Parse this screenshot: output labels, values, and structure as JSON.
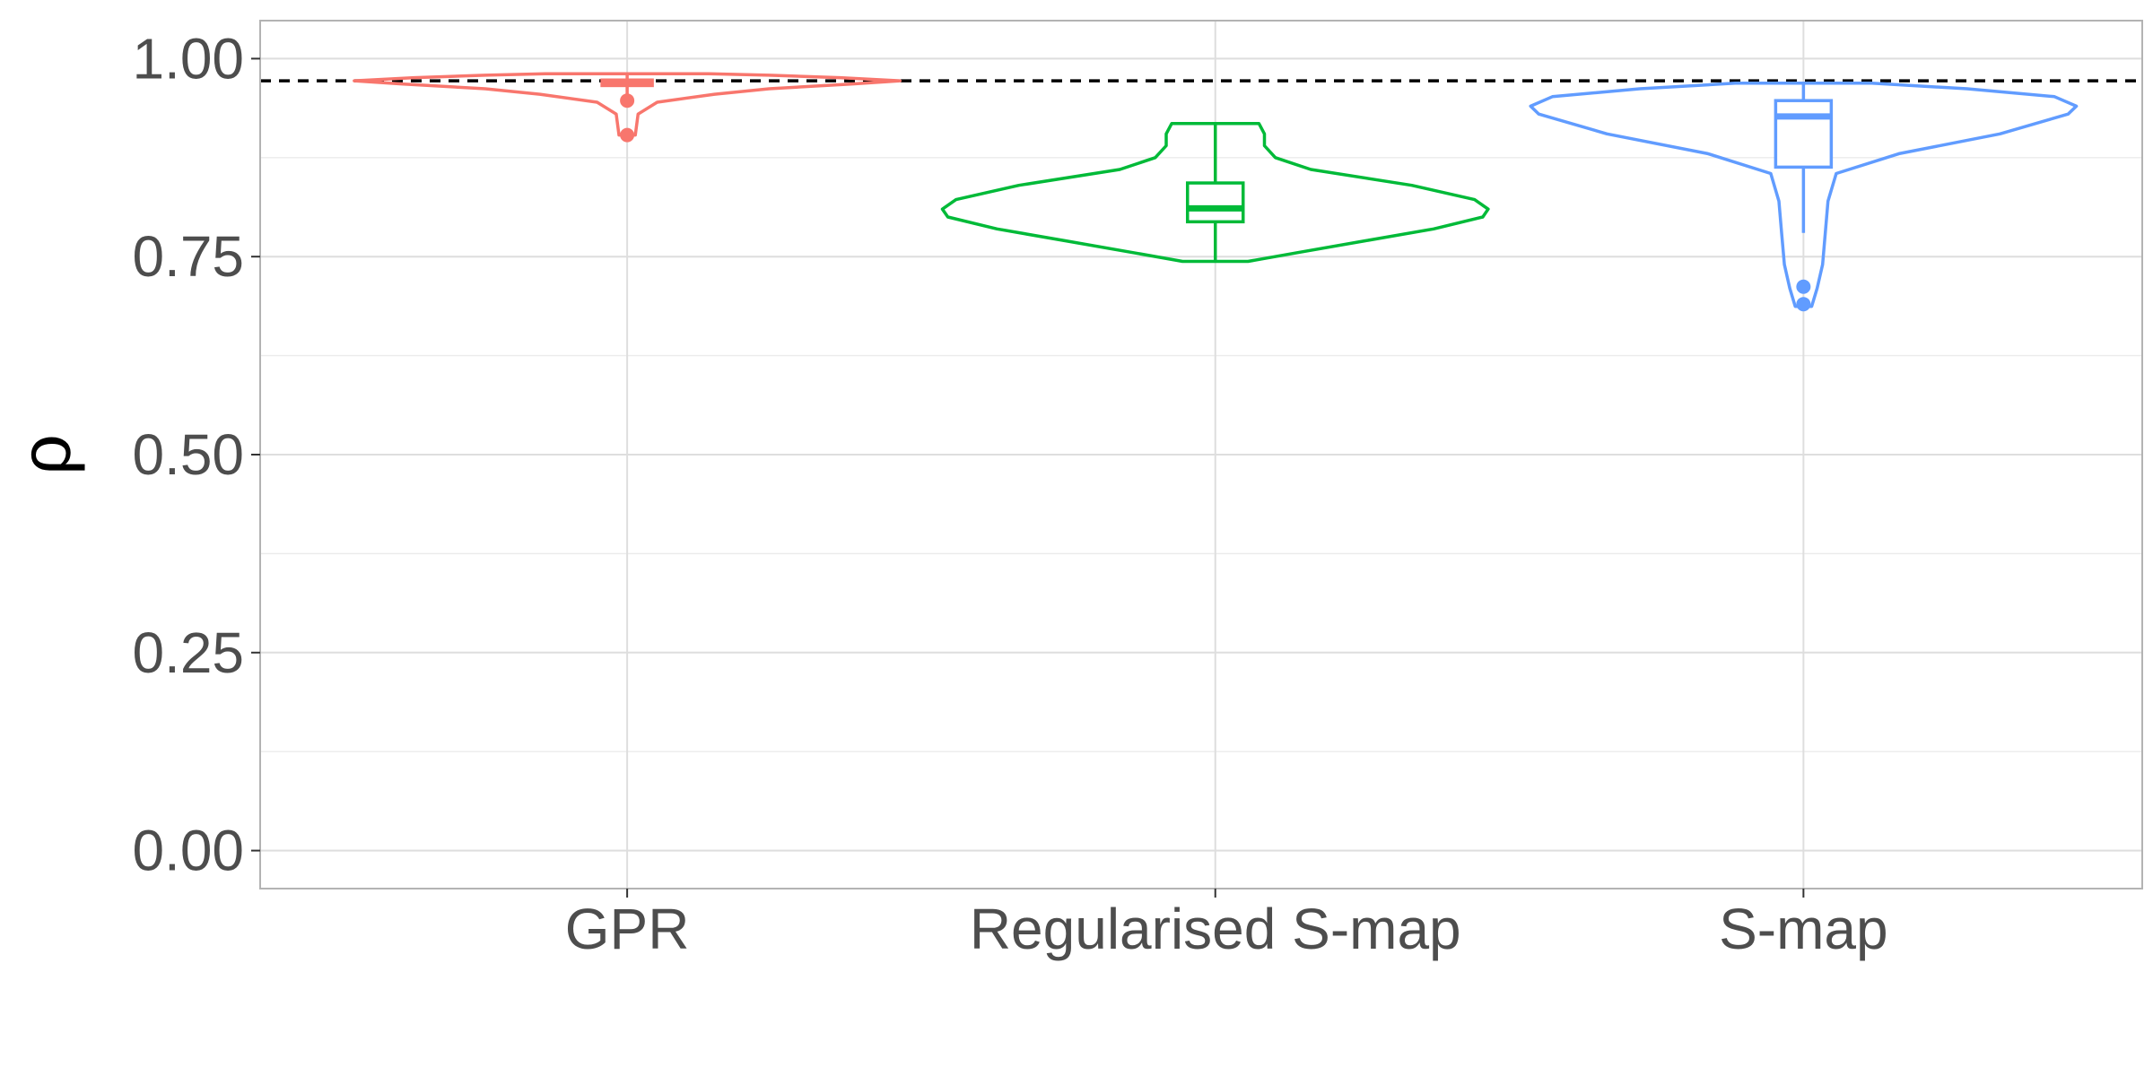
{
  "chart_data": {
    "type": "violin",
    "title": "",
    "xlabel": "",
    "ylabel": "ρ",
    "ylim": [
      -0.048,
      1.048
    ],
    "yticks": [
      0.0,
      0.25,
      0.5,
      0.75,
      1.0
    ],
    "ytick_labels": [
      "0.00",
      "0.25",
      "0.50",
      "0.75",
      "1.00"
    ],
    "minor_yticks": [
      0.125,
      0.375,
      0.625,
      0.875
    ],
    "categories": [
      "GPR",
      "Regularised S-map",
      "S-map"
    ],
    "grid": true,
    "legend": "none",
    "reference_line": {
      "y": 0.972,
      "style": "dashed",
      "color": "#000000"
    },
    "series": [
      {
        "category": "GPR",
        "color": "#F8766D",
        "violin": [
          [
            0.9035,
            0.03
          ],
          [
            0.93,
            0.04
          ],
          [
            0.945,
            0.11
          ],
          [
            0.955,
            0.32
          ],
          [
            0.962,
            0.52
          ],
          [
            0.968,
            0.82
          ],
          [
            0.972,
            1.0
          ],
          [
            0.976,
            0.78
          ],
          [
            0.979,
            0.52
          ],
          [
            0.981,
            0.3
          ]
        ],
        "box": {
          "q1": 0.966,
          "median": 0.9695,
          "q3": 0.973,
          "whisker_low": 0.955,
          "whisker_high": 0.979
        },
        "outliers": [
          0.947,
          0.9035
        ]
      },
      {
        "category": "Regularised S-map",
        "color": "#00BA38",
        "violin": [
          [
            0.744,
            0.12
          ],
          [
            0.755,
            0.3
          ],
          [
            0.77,
            0.55
          ],
          [
            0.785,
            0.8
          ],
          [
            0.8,
            0.98
          ],
          [
            0.81,
            1.0
          ],
          [
            0.822,
            0.95
          ],
          [
            0.84,
            0.72
          ],
          [
            0.86,
            0.35
          ],
          [
            0.875,
            0.22
          ],
          [
            0.89,
            0.18
          ],
          [
            0.905,
            0.18
          ],
          [
            0.918,
            0.16
          ]
        ],
        "box": {
          "q1": 0.794,
          "median": 0.811,
          "q3": 0.843,
          "whisker_low": 0.745,
          "whisker_high": 0.917
        },
        "outliers": []
      },
      {
        "category": "S-map",
        "color": "#619CFF",
        "violin": [
          [
            0.687,
            0.03
          ],
          [
            0.71,
            0.05
          ],
          [
            0.74,
            0.07
          ],
          [
            0.78,
            0.08
          ],
          [
            0.82,
            0.09
          ],
          [
            0.855,
            0.12
          ],
          [
            0.88,
            0.35
          ],
          [
            0.905,
            0.72
          ],
          [
            0.93,
            0.97
          ],
          [
            0.94,
            1.0
          ],
          [
            0.952,
            0.92
          ],
          [
            0.962,
            0.6
          ],
          [
            0.969,
            0.25
          ]
        ],
        "box": {
          "q1": 0.863,
          "median": 0.927,
          "q3": 0.947,
          "whisker_low": 0.78,
          "whisker_high": 0.969
        },
        "outliers": [
          0.712,
          0.69
        ]
      }
    ]
  }
}
